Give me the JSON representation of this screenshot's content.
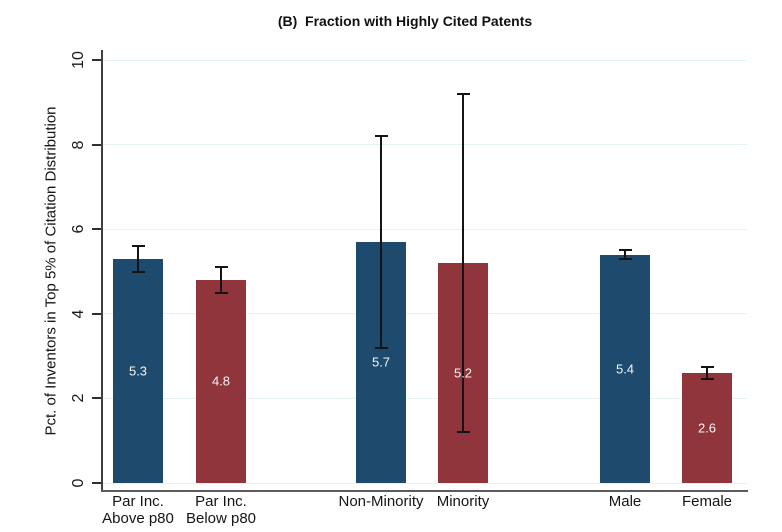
{
  "chart_data": {
    "type": "bar",
    "title": "(B)  Fraction with Highly Cited Patents",
    "ylabel": "Pct. of Inventors in Top 5% of Citation Distribution",
    "xlabel": "",
    "ylim": [
      0,
      10
    ],
    "yticks": [
      0,
      2,
      4,
      6,
      8,
      10
    ],
    "grid": true,
    "legend": "none",
    "categories": [
      "Par Inc. Above p80",
      "Par Inc. Below p80",
      "Non-Minority",
      "Minority",
      "Male",
      "Female"
    ],
    "category_lines": [
      [
        "Par Inc.",
        "Above p80"
      ],
      [
        "Par Inc.",
        "Below p80"
      ],
      [
        "Non-Minority"
      ],
      [
        "Minority"
      ],
      [
        "Male"
      ],
      [
        "Female"
      ]
    ],
    "values": [
      5.3,
      4.8,
      5.7,
      5.2,
      5.4,
      2.6
    ],
    "value_labels": [
      "5.3",
      "4.8",
      "5.7",
      "5.2",
      "5.4",
      "2.6"
    ],
    "ci_low": [
      5.0,
      4.5,
      3.2,
      1.2,
      5.3,
      2.45
    ],
    "ci_high": [
      5.6,
      5.1,
      8.2,
      9.2,
      5.5,
      2.75
    ],
    "bar_colors": [
      "#1d4a6d",
      "#90353b",
      "#1d4a6d",
      "#90353b",
      "#1d4a6d",
      "#90353b"
    ],
    "colors": {
      "navy": "#1d4a6d",
      "maroon": "#90353b",
      "gridline": "#e7f3f1",
      "y_axis_line": "#3f3f3f",
      "x_axis_line": "#5c5c5c",
      "error_bar": "#141414",
      "value_label_text": "#f5f5f5",
      "tick_text": "#1a1a1a"
    }
  }
}
